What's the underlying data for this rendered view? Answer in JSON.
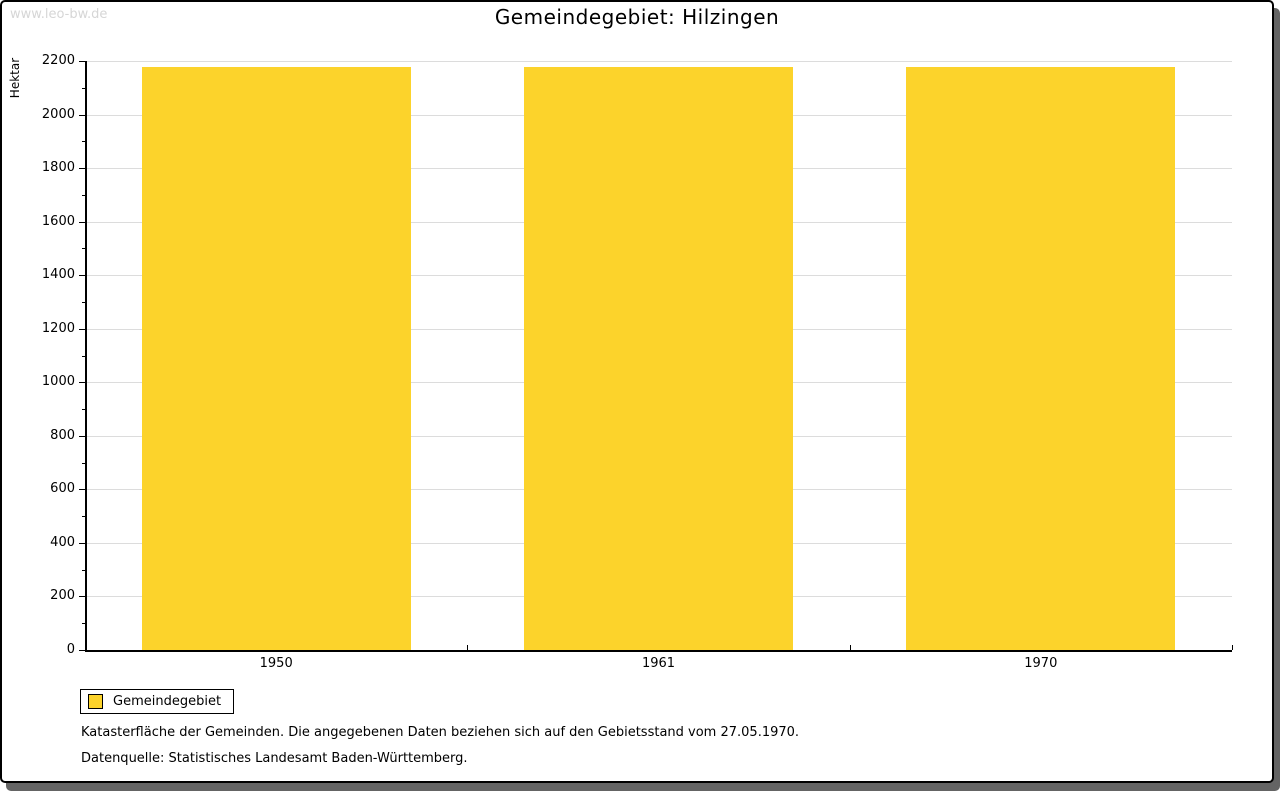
{
  "page": {
    "watermark": "www.leo-bw.de"
  },
  "chart_data": {
    "type": "bar",
    "title": "Gemeindegebiet: Hilzingen",
    "xlabel": "",
    "ylabel": "Hektar",
    "categories": [
      "1950",
      "1961",
      "1970"
    ],
    "series": [
      {
        "name": "Gemeindegebiet",
        "values": [
          2177,
          2177,
          2177
        ],
        "color": "#fcd32b"
      }
    ],
    "ylim": [
      0,
      2200
    ],
    "ytick_major_step": 200,
    "ytick_minor_step": 100,
    "grid": true,
    "gridline_color": "#dcdcdc",
    "legend_position": "bottom-left"
  },
  "footer": {
    "note": "Katasterfläche der Gemeinden. Die angegebenen Daten beziehen sich auf den Gebietsstand vom 27.05.1970.",
    "source": "Datenquelle: Statistisches Landesamt Baden-Württemberg."
  }
}
